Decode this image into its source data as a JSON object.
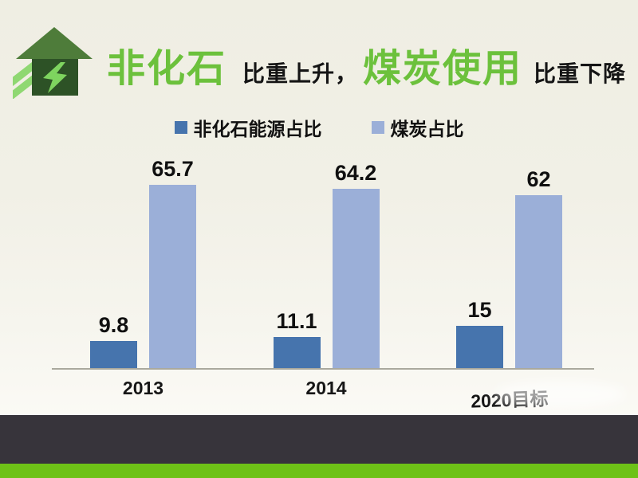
{
  "title": {
    "part1": "非化石",
    "part2": "比重上升，",
    "part3": "煤炭使用",
    "part4": "比重下降"
  },
  "icon": "green-house-energy-icon",
  "chart_data": {
    "type": "bar",
    "categories": [
      "2013",
      "2014",
      "2020目标"
    ],
    "series": [
      {
        "name": "非化石能源占比",
        "color": "#4674ad",
        "values": [
          9.8,
          11.1,
          15
        ]
      },
      {
        "name": "煤炭占比",
        "color": "#9bafd8",
        "values": [
          65.7,
          64.2,
          62
        ]
      }
    ],
    "ylim": [
      0,
      70
    ],
    "grid": false,
    "legend_position": "top",
    "value_labels": true,
    "xlabel": "",
    "ylabel": ""
  },
  "colors": {
    "title_green": "#6cc13c",
    "title_black": "#151515",
    "background_top": "#efeee3",
    "background_bottom": "#fbfaf5",
    "axis_line": "#aaa99e",
    "footer_dark_band": "#37343b",
    "footer_green_band": "#6ec217",
    "house_body": "#2d5226",
    "house_roof": "#4e7c3a",
    "house_bolt": "#7ed45f"
  }
}
